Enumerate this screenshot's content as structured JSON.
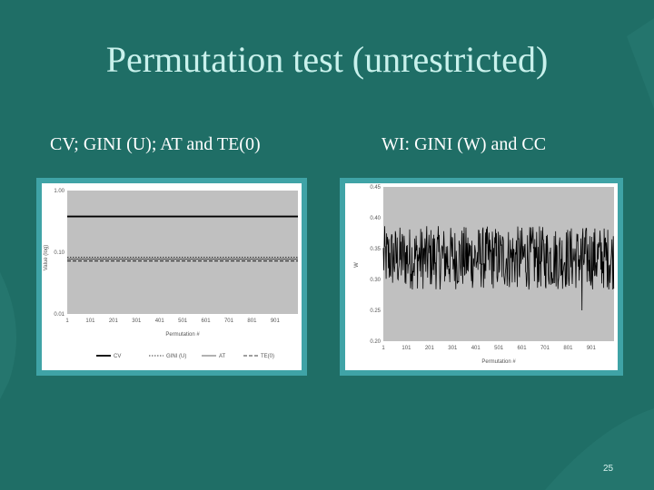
{
  "slide": {
    "title": "Permutation test (unrestricted)",
    "subtitle_left": "CV; GINI (U); AT and TE(0)",
    "subtitle_right": "WI: GINI (W) and CC",
    "page_number": "25"
  },
  "colors": {
    "background": "#1f6e66",
    "title": "#c9f1ec",
    "panel_frame": "#3fa3a6",
    "plot_bg": "#c0c0c0"
  },
  "chart_data": [
    {
      "type": "line",
      "ylabel": "Value (log)",
      "xlabel": "Permutation #",
      "yscale": "log",
      "ylim": [
        0.01,
        1
      ],
      "yticks": [
        "1.00",
        "0.10",
        "0.01"
      ],
      "xticks": [
        "1",
        "101",
        "201",
        "301",
        "401",
        "501",
        "601",
        "701",
        "801",
        "901"
      ],
      "xlim": [
        1,
        1000
      ],
      "series": [
        {
          "name": "CV",
          "style": "solid",
          "value": 0.38
        },
        {
          "name": "GINI (U)",
          "style": "dotted",
          "value": 0.083
        },
        {
          "name": "AT",
          "style": "solid-thin",
          "value": 0.078
        },
        {
          "name": "TE(0)",
          "style": "dashed",
          "value": 0.072
        }
      ],
      "legend": [
        "CV",
        "GINI (U)",
        "AT",
        "TE(0)"
      ],
      "legend_position": "bottom"
    },
    {
      "type": "line",
      "ylabel": "W",
      "xlabel": "Permutation #",
      "ylim": [
        0.2,
        0.45
      ],
      "yticks": [
        "0.45",
        "0.40",
        "0.35",
        "0.30",
        "0.25",
        "0.20"
      ],
      "xticks": [
        "1",
        "101",
        "201",
        "301",
        "401",
        "501",
        "601",
        "701",
        "801",
        "901"
      ],
      "xlim": [
        1,
        1000
      ],
      "series": [
        {
          "name": "W",
          "mean": 0.335,
          "range": [
            0.28,
            0.395
          ],
          "min_spike": 0.25,
          "n": 1000
        }
      ]
    }
  ]
}
